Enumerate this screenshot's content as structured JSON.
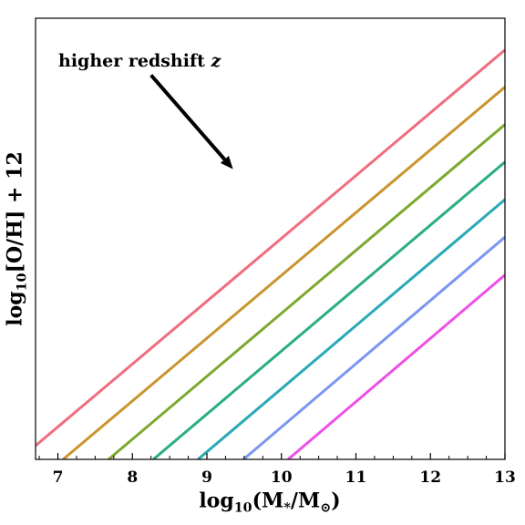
{
  "chart_data": {
    "type": "line",
    "title": "",
    "xlabel": "log10(M*/M⊙)",
    "ylabel": "log10[O/H] + 12",
    "xlim": [
      6.7,
      13
    ],
    "ylim": [
      0,
      1
    ],
    "x_ticks": [
      "7",
      "8",
      "9",
      "10",
      "11",
      "12",
      "13"
    ],
    "y_ticks": [],
    "grid": false,
    "annotation": {
      "text": "higher redshift",
      "symbol": "z",
      "arrow_from": [
        8.25,
        0.871
      ],
      "arrow_to": [
        9.35,
        0.658
      ]
    },
    "series": [
      {
        "color": "#f06d7e",
        "x": [
          6.7,
          13
        ],
        "y": [
          0.031,
          0.928
        ]
      },
      {
        "color": "#c9952e",
        "x": [
          7.07,
          13
        ],
        "y": [
          0.0,
          0.844
        ]
      },
      {
        "color": "#7ea82f",
        "x": [
          7.68,
          13
        ],
        "y": [
          0.0,
          0.759
        ]
      },
      {
        "color": "#2aaf7f",
        "x": [
          8.28,
          13
        ],
        "y": [
          0.0,
          0.674
        ]
      },
      {
        "color": "#2aa9b7",
        "x": [
          8.88,
          13
        ],
        "y": [
          0.0,
          0.589
        ]
      },
      {
        "color": "#7b96f0",
        "x": [
          9.49,
          13
        ],
        "y": [
          0.0,
          0.504
        ]
      },
      {
        "color": "#ee4fe6",
        "x": [
          10.09,
          13
        ],
        "y": [
          0.0,
          0.418
        ]
      }
    ]
  }
}
